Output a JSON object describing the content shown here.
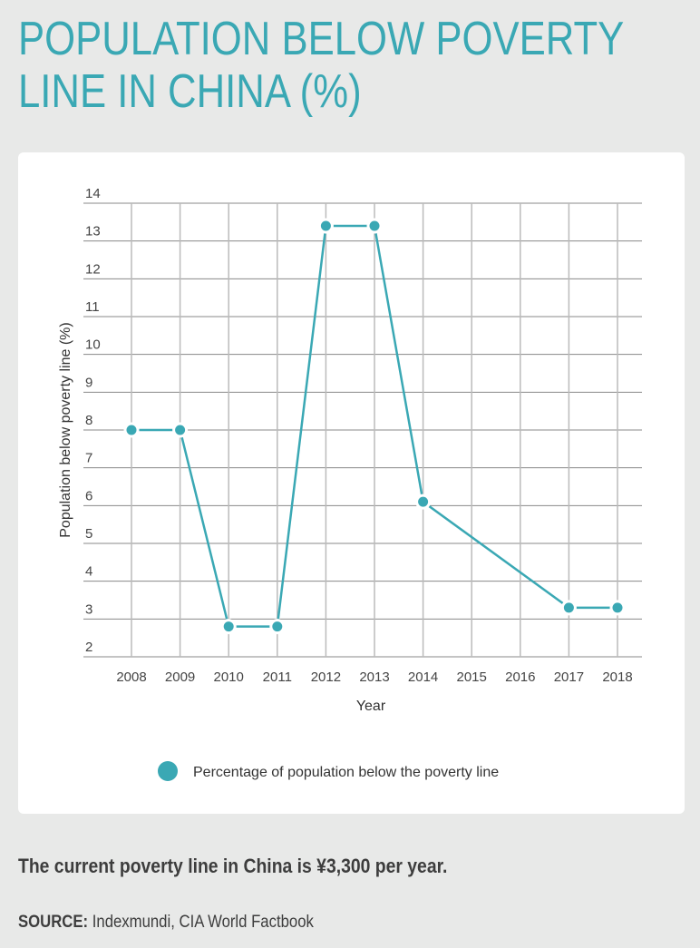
{
  "title_line1": "POPULATION BELOW POVERTY",
  "title_line2": "LINE IN CHINA (%)",
  "note": "The current poverty line in China is ¥3,300 per year.",
  "source_label": "SOURCE:",
  "source_text": "Indexmundi, CIA World Factbook",
  "colors": {
    "accent": "#3aa8b4",
    "background": "#e8e9e8",
    "card": "#ffffff"
  },
  "chart_data": {
    "type": "line",
    "xlabel": "Year",
    "ylabel": "Population below poverty line (%)",
    "categories": [
      "2008",
      "2009",
      "2010",
      "2011",
      "2012",
      "2013",
      "2014",
      "2015",
      "2016",
      "2017",
      "2018"
    ],
    "ylim": [
      2,
      14
    ],
    "yticks": [
      2,
      3,
      4,
      5,
      6,
      7,
      8,
      9,
      10,
      11,
      12,
      13,
      14
    ],
    "grid": true,
    "legend_position": "bottom",
    "series": [
      {
        "name": "Percentage of population below the poverty line",
        "points": [
          {
            "x": "2008",
            "y": 8
          },
          {
            "x": "2009",
            "y": 8
          },
          {
            "x": "2010",
            "y": 2.8
          },
          {
            "x": "2011",
            "y": 2.8
          },
          {
            "x": "2012",
            "y": 13.4
          },
          {
            "x": "2013",
            "y": 13.4
          },
          {
            "x": "2014",
            "y": 6.1
          },
          {
            "x": "2017",
            "y": 3.3
          },
          {
            "x": "2018",
            "y": 3.3
          }
        ]
      }
    ]
  }
}
